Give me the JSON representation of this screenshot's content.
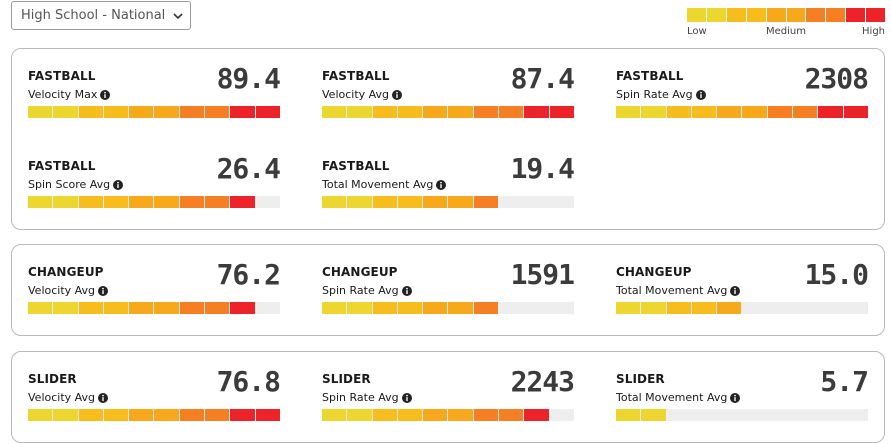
{
  "filter": {
    "selected": "High School - National"
  },
  "legend": {
    "low_label": "Low",
    "medium_label": "Medium",
    "high_label": "High",
    "colors": [
      "#eed630",
      "#eed630",
      "#f7bd1c",
      "#f7bd1c",
      "#f7a81b",
      "#f7a81b",
      "#f57f22",
      "#f57f22",
      "#ee2229",
      "#ee2229"
    ]
  },
  "segment_colors": [
    "#eed630",
    "#eed630",
    "#f7bd1c",
    "#f7bd1c",
    "#f7a81b",
    "#f7a81b",
    "#f57f22",
    "#f57f22",
    "#ee2229",
    "#ee2229"
  ],
  "panels": [
    {
      "metrics": [
        {
          "pitch": "FASTBALL",
          "stat": "Velocity Max",
          "value": "89.4",
          "fill": 1.0
        },
        {
          "pitch": "FASTBALL",
          "stat": "Velocity Avg",
          "value": "87.4",
          "fill": 1.0
        },
        {
          "pitch": "FASTBALL",
          "stat": "Spin Rate Avg",
          "value": "2308",
          "fill": 1.0
        },
        {
          "pitch": "FASTBALL",
          "stat": "Spin Score Avg",
          "value": "26.4",
          "fill": 0.86
        },
        {
          "pitch": "FASTBALL",
          "stat": "Total Movement Avg",
          "value": "19.4",
          "fill": 0.73
        }
      ]
    },
    {
      "metrics": [
        {
          "pitch": "CHANGEUP",
          "stat": "Velocity Avg",
          "value": "76.2",
          "fill": 0.86
        },
        {
          "pitch": "CHANGEUP",
          "stat": "Spin Rate Avg",
          "value": "1591",
          "fill": 0.66
        },
        {
          "pitch": "CHANGEUP",
          "stat": "Total Movement Avg",
          "value": "15.0",
          "fill": 0.46
        }
      ]
    },
    {
      "metrics": [
        {
          "pitch": "SLIDER",
          "stat": "Velocity Avg",
          "value": "76.8",
          "fill": 1.0
        },
        {
          "pitch": "SLIDER",
          "stat": "Spin Rate Avg",
          "value": "2243",
          "fill": 0.86
        },
        {
          "pitch": "SLIDER",
          "stat": "Total Movement Avg",
          "value": "5.7",
          "fill": 0.2
        }
      ]
    }
  ]
}
